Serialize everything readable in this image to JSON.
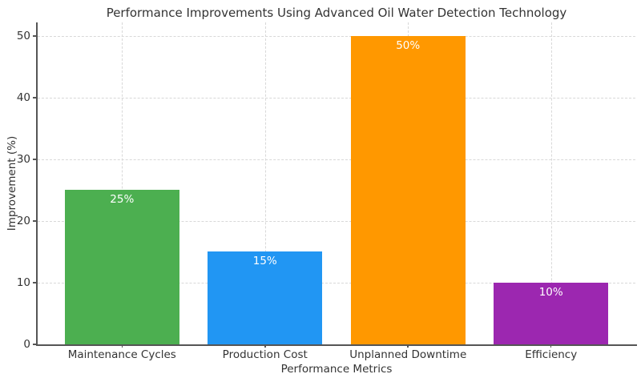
{
  "chart_data": {
    "type": "bar",
    "title": "Performance Improvements Using Advanced Oil Water Detection Technology",
    "xlabel": "Performance Metrics",
    "ylabel": "Improvement (%)",
    "categories": [
      "Maintenance Cycles",
      "Production Cost",
      "Unplanned Downtime",
      "Efficiency"
    ],
    "values": [
      25,
      15,
      50,
      10
    ],
    "bar_labels": [
      "25%",
      "15%",
      "50%",
      "10%"
    ],
    "bar_colors": [
      "#4CAF50",
      "#2196F3",
      "#FF9800",
      "#9C27B0"
    ],
    "yticks": [
      0,
      10,
      20,
      30,
      40,
      50
    ],
    "ylim": [
      0,
      52.2
    ],
    "grid": {
      "style": "dashed",
      "color": "#d8d8d8",
      "horizontal_at_yticks": true,
      "vertical_at_bar_centers": true
    },
    "legend_position": "none",
    "value_label_color": "#ffffff",
    "axis_color": "#555555",
    "text_color": "#333333",
    "background_color": "#ffffff"
  }
}
